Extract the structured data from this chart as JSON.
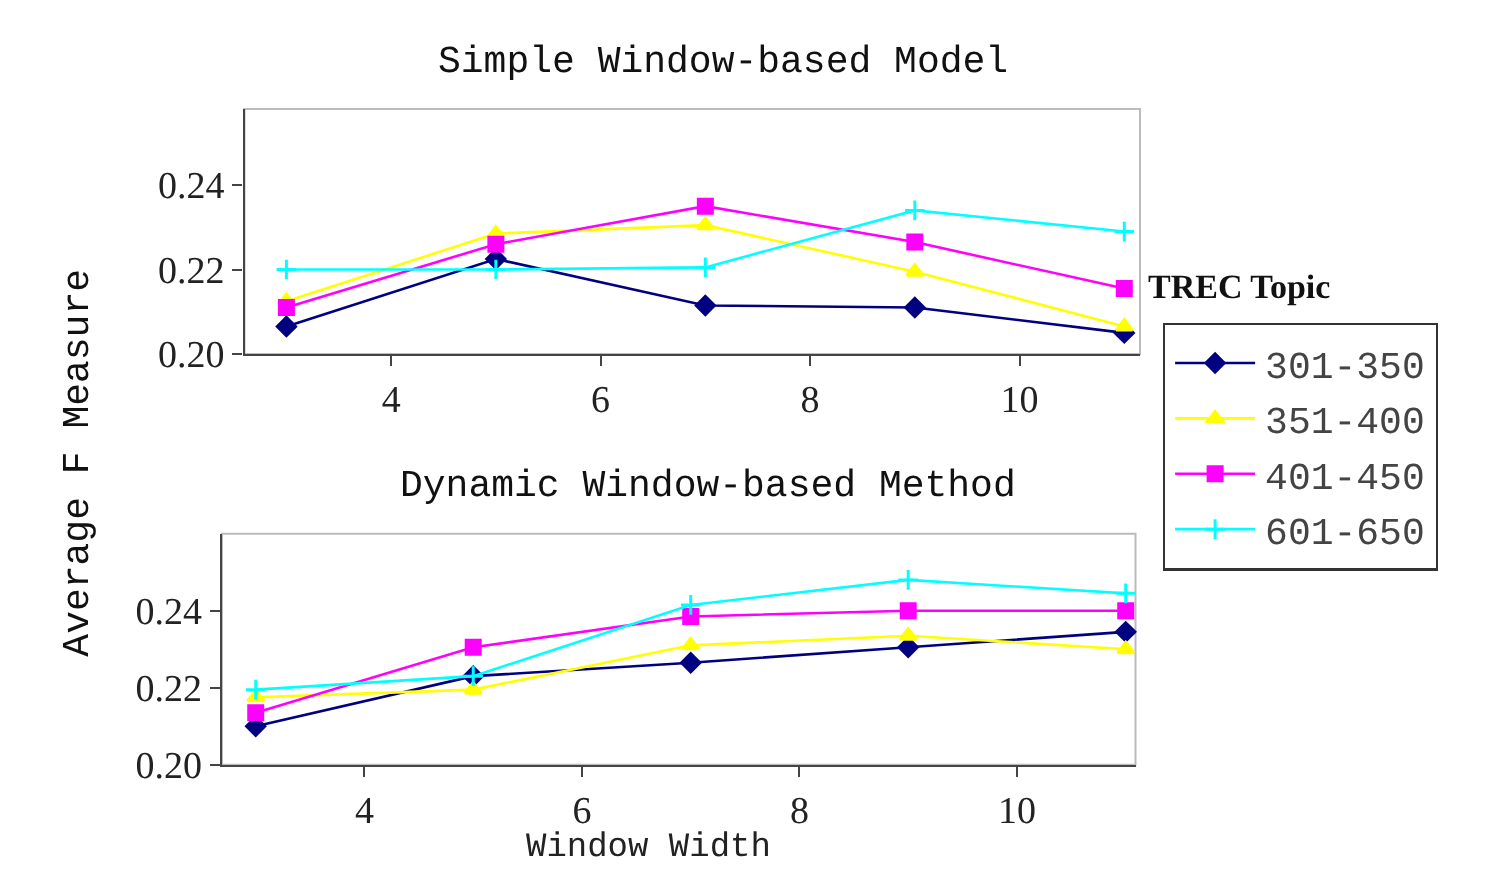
{
  "chart_data": [
    {
      "type": "line",
      "title": "Simple Window-based Model",
      "ylabel": "Average F Measure",
      "legend_title": "TREC Topic",
      "legend": "right",
      "x": [
        3,
        5,
        7,
        9,
        11
      ],
      "xlim": [
        2.6,
        11.15
      ],
      "xticks": [
        4,
        6,
        8,
        10
      ],
      "ylim": [
        0.2,
        0.258
      ],
      "yticks": [
        {
          "value": 0.2,
          "label": "0.20"
        },
        {
          "value": 0.22,
          "label": "0.22"
        },
        {
          "value": 0.24,
          "label": "0.24"
        }
      ],
      "grid": false,
      "series": [
        {
          "name": "301-350",
          "color": "#000080",
          "marker": "diamond",
          "values": [
            0.2065,
            0.2225,
            0.2115,
            0.211,
            0.205
          ]
        },
        {
          "name": "351-400",
          "color": "#ffff00",
          "marker": "triangle",
          "values": [
            0.2125,
            0.2285,
            0.2305,
            0.2195,
            0.2065
          ]
        },
        {
          "name": "401-450",
          "color": "#ff00ff",
          "marker": "square",
          "values": [
            0.211,
            0.226,
            0.235,
            0.2265,
            0.2155
          ]
        },
        {
          "name": "601-650",
          "color": "#00ffff",
          "marker": "cross",
          "values": [
            0.22,
            0.22,
            0.2205,
            0.234,
            0.229
          ]
        }
      ]
    },
    {
      "type": "line",
      "title": "Dynamic Window-based Method",
      "xlabel": "Window Width",
      "legend": false,
      "x": [
        3,
        5,
        7,
        9,
        11
      ],
      "xlim": [
        2.69,
        11.09
      ],
      "xticks": [
        4,
        6,
        8,
        10
      ],
      "ylim": [
        0.2,
        0.26
      ],
      "yticks": [
        {
          "value": 0.2,
          "label": "0.20"
        },
        {
          "value": 0.22,
          "label": "0.22"
        },
        {
          "value": 0.24,
          "label": "0.24"
        }
      ],
      "grid": false,
      "series": [
        {
          "color": "#000080",
          "marker": "diamond",
          "values": [
            0.21,
            0.223,
            0.2265,
            0.2305,
            0.2345
          ]
        },
        {
          "color": "#ffff00",
          "marker": "triangle",
          "values": [
            0.2175,
            0.2195,
            0.231,
            0.2335,
            0.23
          ]
        },
        {
          "color": "#ff00ff",
          "marker": "square",
          "values": [
            0.2135,
            0.2305,
            0.2385,
            0.24,
            0.24
          ]
        },
        {
          "color": "#00ffff",
          "marker": "cross",
          "values": [
            0.2195,
            0.223,
            0.2415,
            0.248,
            0.2445
          ]
        }
      ]
    }
  ]
}
